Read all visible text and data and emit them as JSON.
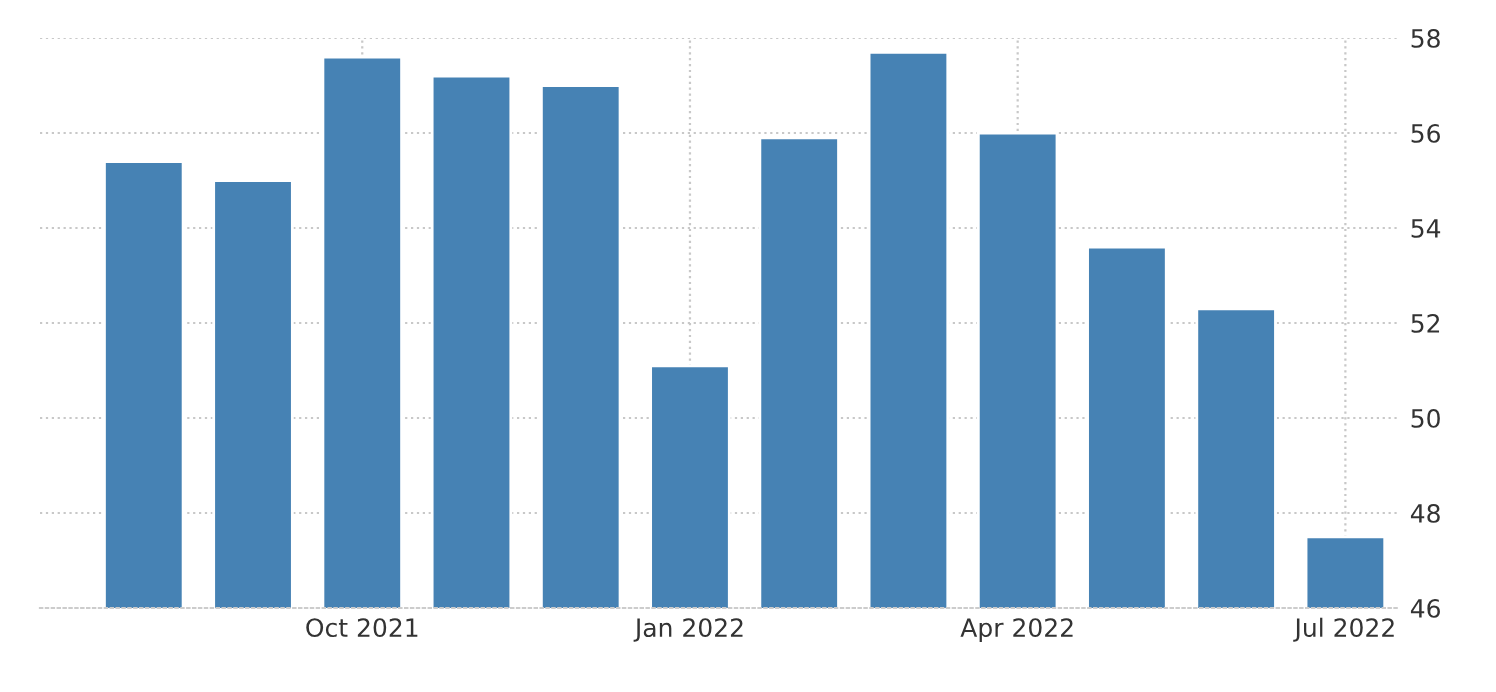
{
  "chart_data": {
    "type": "bar",
    "categories": [
      null,
      null,
      "Oct 2021",
      null,
      null,
      "Jan 2022",
      null,
      null,
      "Apr 2022",
      null,
      null,
      "Jul 2022"
    ],
    "values": [
      55.4,
      55.0,
      57.6,
      57.2,
      57.0,
      51.1,
      55.9,
      57.7,
      56.0,
      53.6,
      52.3,
      47.5
    ],
    "color": "#4682b4",
    "ylim": [
      46,
      58
    ],
    "yticks": [
      46,
      48,
      50,
      52,
      54,
      56,
      58
    ],
    "grid": true
  }
}
